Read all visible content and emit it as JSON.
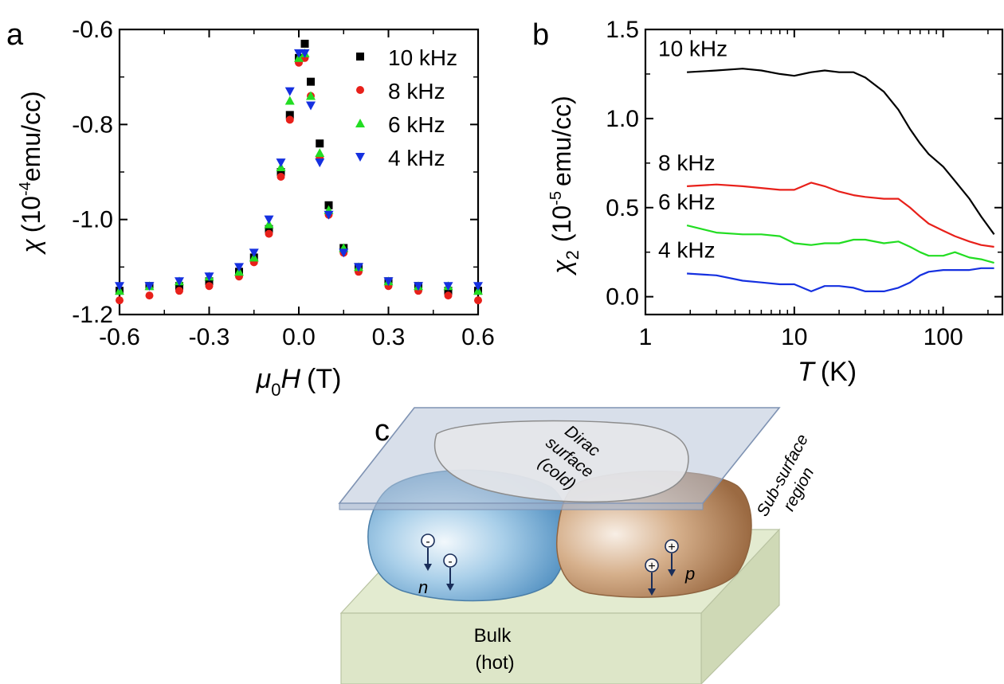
{
  "panels": {
    "a": "a",
    "b": "b",
    "c": "c"
  },
  "chart_data": [
    {
      "panel": "a",
      "type": "scatter",
      "xlabel_sym": "μ",
      "xlabel_sub": "0",
      "xlabel_var": "H",
      "xlabel_unit": "(T)",
      "ylabel_sym": "χ",
      "ylabel_pre": "(10",
      "ylabel_exp": "-4",
      "ylabel_post": "emu/cc)",
      "xlim": [
        -0.6,
        0.6
      ],
      "ylim": [
        -1.2,
        -0.6
      ],
      "xticks": [
        -0.6,
        -0.3,
        0.0,
        0.3,
        0.6
      ],
      "xtick_labels": [
        "-0.6",
        "-0.3",
        "0.0",
        "0.3",
        "0.6"
      ],
      "yticks": [
        -1.2,
        -1.0,
        -0.8,
        -0.6
      ],
      "ytick_labels": [
        "-1.2",
        "-1.0",
        "-0.8",
        "-0.6"
      ],
      "legend_position": "top-right",
      "series": [
        {
          "name": "10 kHz",
          "color": "#000000",
          "marker": "square",
          "x": [
            -0.6,
            -0.5,
            -0.4,
            -0.3,
            -0.2,
            -0.15,
            -0.1,
            -0.06,
            -0.03,
            0.0,
            0.02,
            0.04,
            0.07,
            0.1,
            0.15,
            0.2,
            0.3,
            0.4,
            0.5,
            0.6
          ],
          "y": [
            -1.15,
            -1.14,
            -1.14,
            -1.13,
            -1.11,
            -1.08,
            -1.02,
            -0.9,
            -0.78,
            -0.66,
            -0.63,
            -0.71,
            -0.84,
            -0.97,
            -1.06,
            -1.1,
            -1.13,
            -1.14,
            -1.15,
            -1.15
          ]
        },
        {
          "name": "8 kHz",
          "color": "#e8201a",
          "marker": "circle",
          "x": [
            -0.6,
            -0.5,
            -0.4,
            -0.3,
            -0.2,
            -0.15,
            -0.1,
            -0.06,
            -0.03,
            0.0,
            0.02,
            0.04,
            0.07,
            0.1,
            0.15,
            0.2,
            0.3,
            0.4,
            0.5,
            0.6
          ],
          "y": [
            -1.17,
            -1.16,
            -1.15,
            -1.14,
            -1.12,
            -1.09,
            -1.03,
            -0.91,
            -0.79,
            -0.67,
            -0.66,
            -0.74,
            -0.87,
            -0.99,
            -1.07,
            -1.11,
            -1.14,
            -1.15,
            -1.16,
            -1.17
          ]
        },
        {
          "name": "6 kHz",
          "color": "#22dd22",
          "marker": "triangle-up",
          "x": [
            -0.6,
            -0.5,
            -0.4,
            -0.3,
            -0.2,
            -0.15,
            -0.1,
            -0.06,
            -0.03,
            0.0,
            0.02,
            0.04,
            0.07,
            0.1,
            0.15,
            0.2,
            0.3,
            0.4,
            0.5,
            0.6
          ],
          "y": [
            -1.15,
            -1.14,
            -1.13,
            -1.12,
            -1.11,
            -1.08,
            -1.01,
            -0.89,
            -0.75,
            -0.66,
            -0.65,
            -0.74,
            -0.86,
            -0.98,
            -1.06,
            -1.1,
            -1.13,
            -1.14,
            -1.14,
            -1.15
          ]
        },
        {
          "name": "4 kHz",
          "color": "#1530e0",
          "marker": "triangle-down",
          "x": [
            -0.6,
            -0.5,
            -0.4,
            -0.3,
            -0.2,
            -0.15,
            -0.1,
            -0.06,
            -0.03,
            0.0,
            0.02,
            0.04,
            0.07,
            0.1,
            0.15,
            0.2,
            0.3,
            0.4,
            0.5,
            0.6
          ],
          "y": [
            -1.14,
            -1.14,
            -1.13,
            -1.12,
            -1.1,
            -1.07,
            -1.0,
            -0.88,
            -0.73,
            -0.65,
            -0.65,
            -0.76,
            -0.88,
            -0.99,
            -1.07,
            -1.1,
            -1.13,
            -1.14,
            -1.14,
            -1.14
          ]
        }
      ]
    },
    {
      "panel": "b",
      "type": "line",
      "xscale": "log",
      "xlabel_var": "T",
      "xlabel_unit": "(K)",
      "ylabel_sym": "χ",
      "ylabel_sub": "2",
      "ylabel_pre": "(10",
      "ylabel_exp": "-5",
      "ylabel_post": "emu/cc)",
      "xlim": [
        1,
        250
      ],
      "ylim": [
        -0.1,
        1.5
      ],
      "xticks": [
        1,
        10,
        100
      ],
      "xtick_labels": [
        "1",
        "10",
        "100"
      ],
      "yticks": [
        0.0,
        0.5,
        1.0,
        1.5
      ],
      "ytick_labels": [
        "0.0",
        "0.5",
        "1.0",
        "1.5"
      ],
      "series": [
        {
          "name": "10 kHz",
          "color": "#000000",
          "x": [
            1.9,
            3,
            4.5,
            6,
            8,
            10,
            13,
            16,
            20,
            25,
            30,
            40,
            50,
            60,
            70,
            80,
            100,
            120,
            150,
            180,
            220
          ],
          "y": [
            1.26,
            1.27,
            1.28,
            1.27,
            1.25,
            1.24,
            1.26,
            1.27,
            1.26,
            1.26,
            1.23,
            1.15,
            1.05,
            0.94,
            0.86,
            0.8,
            0.73,
            0.65,
            0.55,
            0.45,
            0.35
          ]
        },
        {
          "name": "8 kHz",
          "color": "#e8201a",
          "x": [
            1.9,
            3,
            4.5,
            6,
            8,
            10,
            13,
            16,
            20,
            25,
            30,
            40,
            50,
            60,
            70,
            80,
            100,
            120,
            150,
            180,
            220
          ],
          "y": [
            0.62,
            0.63,
            0.62,
            0.61,
            0.6,
            0.6,
            0.64,
            0.62,
            0.59,
            0.57,
            0.56,
            0.55,
            0.55,
            0.5,
            0.45,
            0.41,
            0.37,
            0.34,
            0.31,
            0.29,
            0.28
          ]
        },
        {
          "name": "6 kHz",
          "color": "#22dd22",
          "x": [
            1.9,
            3,
            4.5,
            6,
            8,
            10,
            13,
            16,
            20,
            25,
            30,
            40,
            50,
            60,
            70,
            80,
            100,
            120,
            150,
            180,
            220
          ],
          "y": [
            0.4,
            0.36,
            0.35,
            0.35,
            0.34,
            0.3,
            0.29,
            0.3,
            0.3,
            0.32,
            0.32,
            0.3,
            0.31,
            0.28,
            0.25,
            0.23,
            0.23,
            0.25,
            0.22,
            0.21,
            0.19
          ]
        },
        {
          "name": "4 kHz",
          "color": "#1530e0",
          "x": [
            1.9,
            3,
            4.5,
            6,
            8,
            10,
            13,
            16,
            20,
            25,
            30,
            40,
            50,
            60,
            70,
            80,
            100,
            120,
            150,
            180,
            220
          ],
          "y": [
            0.13,
            0.12,
            0.09,
            0.08,
            0.07,
            0.07,
            0.03,
            0.06,
            0.06,
            0.05,
            0.03,
            0.03,
            0.05,
            0.08,
            0.12,
            0.14,
            0.15,
            0.15,
            0.15,
            0.16,
            0.16
          ]
        }
      ]
    }
  ],
  "diagram": {
    "dirac_line1": "Dirac",
    "dirac_line2": "surface",
    "dirac_line3": "(cold)",
    "subsurface_line1": "Sub-surface",
    "subsurface_line2": "region",
    "n_label": "n",
    "p_label": "p",
    "bulk_line1": "Bulk",
    "bulk_line2": "(hot)",
    "minus": "-",
    "plus": "+",
    "colors": {
      "n_region": "#7fb6dc",
      "p_region": "#c89a72",
      "bulk_slab": "#dde6c8",
      "surface_plane": "#b8c4d8",
      "arrow": "#1a2e5a"
    }
  }
}
